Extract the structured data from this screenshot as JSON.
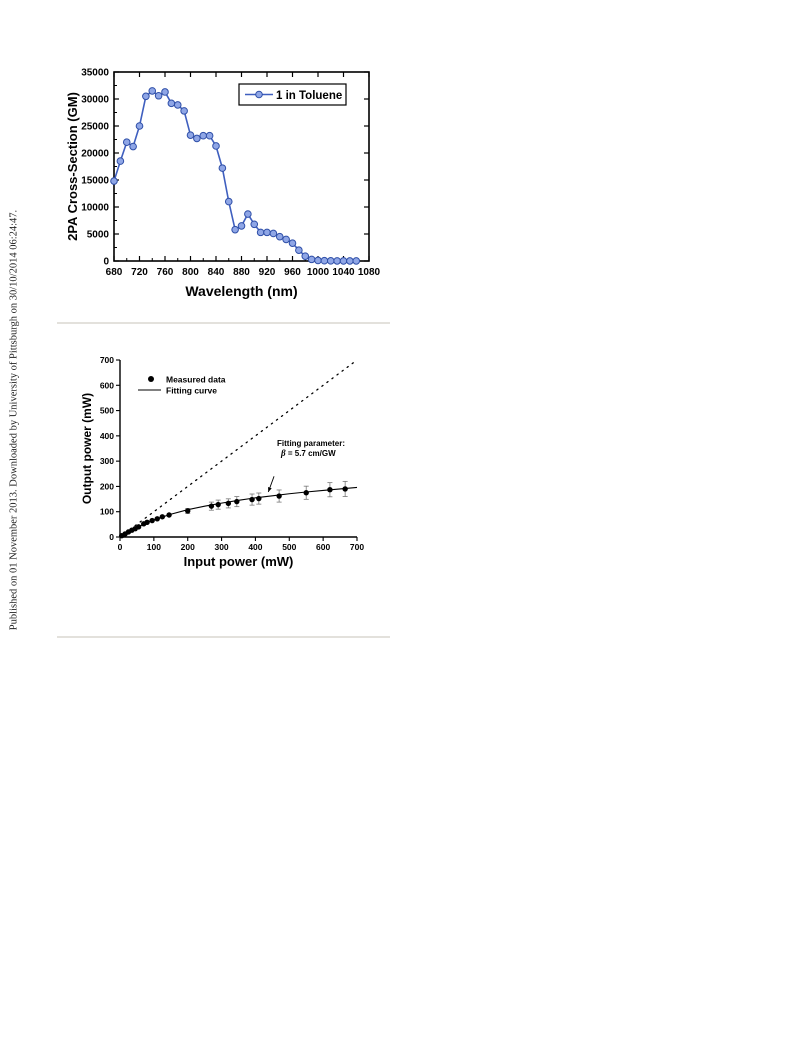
{
  "side_note": "Published on 01 November 2013. Downloaded by University of Pittsburgh on 30/10/2014 06:24:47.",
  "chart_data": [
    {
      "type": "line",
      "xlabel": "Wavelength (nm)",
      "ylabel": "2PA Cross-Section (GM)",
      "xlim": [
        680,
        1080
      ],
      "ylim": [
        0,
        35000
      ],
      "xticks": [
        680,
        720,
        760,
        800,
        840,
        880,
        920,
        960,
        1000,
        1040,
        1080
      ],
      "yticks": [
        0,
        5000,
        10000,
        15000,
        20000,
        25000,
        30000,
        35000
      ],
      "legend_position": "top-right",
      "grid": false,
      "series": [
        {
          "name": "1 in Toluene",
          "color": "#3f5fbf",
          "x": [
            680,
            690,
            700,
            710,
            720,
            730,
            740,
            750,
            760,
            770,
            780,
            790,
            800,
            810,
            820,
            830,
            840,
            850,
            860,
            870,
            880,
            890,
            900,
            910,
            920,
            930,
            940,
            950,
            960,
            970,
            980,
            990,
            1000,
            1010,
            1020,
            1030,
            1040,
            1050,
            1060
          ],
          "y": [
            14800,
            18500,
            22000,
            21200,
            25000,
            30500,
            31500,
            30600,
            31300,
            29200,
            28900,
            27800,
            23300,
            22700,
            23200,
            23200,
            21300,
            17200,
            11000,
            5800,
            6500,
            8700,
            6800,
            5300,
            5300,
            5100,
            4500,
            4000,
            3300,
            2000,
            900,
            300,
            100,
            50,
            30,
            20,
            10,
            10,
            10
          ]
        }
      ]
    },
    {
      "type": "scatter",
      "xlabel": "Input power (mW)",
      "ylabel": "Output power (mW)",
      "xlim": [
        0,
        700
      ],
      "ylim": [
        0,
        700
      ],
      "xticks": [
        0,
        100,
        200,
        300,
        400,
        500,
        600,
        700
      ],
      "yticks": [
        0,
        100,
        200,
        300,
        400,
        500,
        600,
        700
      ],
      "legend_position": "top-left",
      "grid": false,
      "annotation": {
        "line1": "Fitting parameter:",
        "line2_symbol": "β",
        "line2_rest": " = 5.7 cm/GW",
        "arrow_from": [
          455,
          240
        ],
        "arrow_to": [
          438,
          178
        ]
      },
      "series": [
        {
          "name": "Measured data",
          "x": [
            5,
            15,
            25,
            35,
            45,
            55,
            70,
            80,
            95,
            110,
            125,
            145,
            200,
            270,
            290,
            320,
            345,
            390,
            410,
            470,
            550,
            620,
            665
          ],
          "y": [
            5,
            12,
            20,
            27,
            33,
            40,
            52,
            58,
            65,
            72,
            80,
            87,
            103,
            122,
            128,
            133,
            140,
            148,
            152,
            162,
            175,
            187,
            190
          ],
          "error": [
            0,
            0,
            0,
            0,
            0,
            0,
            0,
            0,
            0,
            0,
            0,
            0,
            10,
            16,
            18,
            18,
            20,
            22,
            22,
            24,
            26,
            28,
            30
          ]
        },
        {
          "name": "Fitting curve",
          "x": [
            0,
            50,
            100,
            150,
            200,
            250,
            300,
            350,
            400,
            450,
            500,
            550,
            600,
            650,
            700
          ],
          "y": [
            0,
            38,
            68,
            90,
            108,
            122,
            134,
            145,
            155,
            163,
            171,
            178,
            184,
            190,
            196
          ]
        },
        {
          "name": "",
          "style": "dotted",
          "x": [
            0,
            700
          ],
          "y": [
            0,
            700
          ]
        }
      ]
    }
  ]
}
